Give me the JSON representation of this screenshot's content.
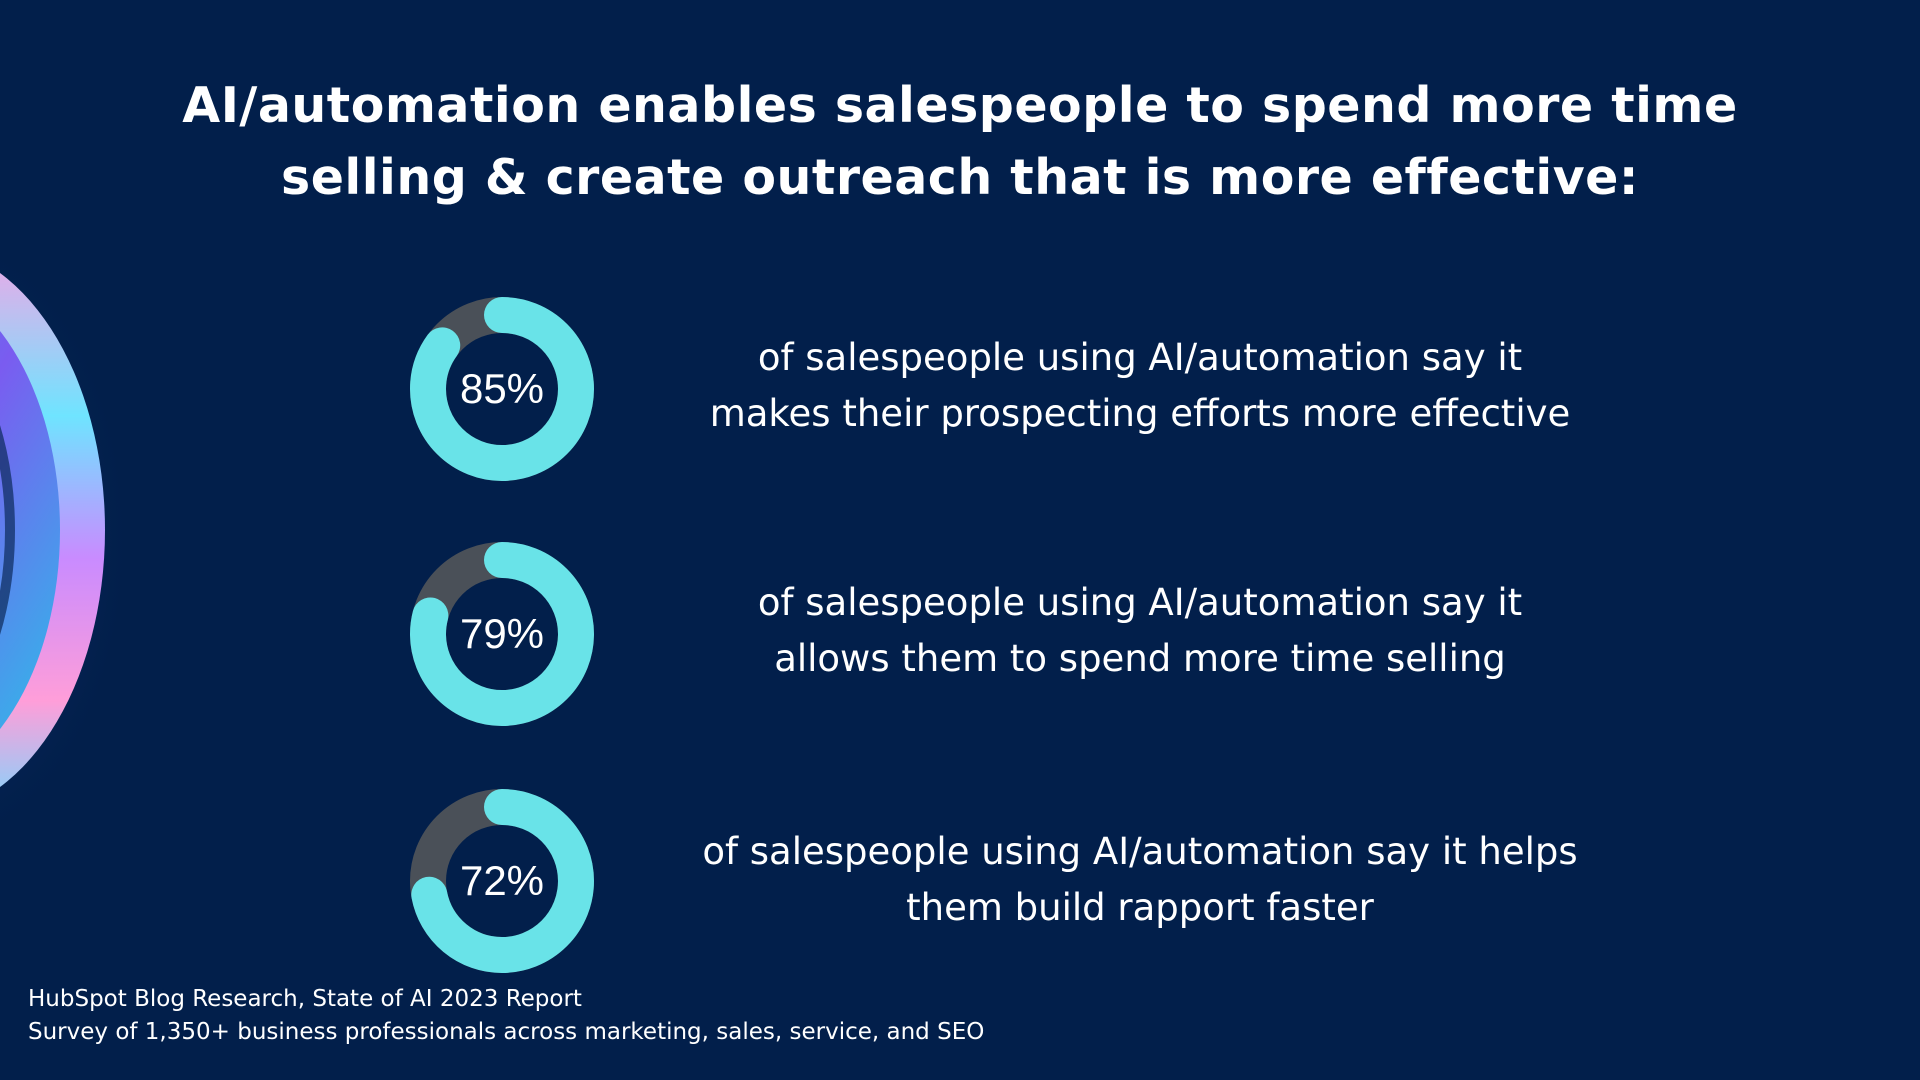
{
  "colors": {
    "background": "#021f4b",
    "ring_fill": "#69e3e8",
    "ring_track": "#4a5058",
    "text": "#ffffff"
  },
  "title": {
    "line1": "AI/automation enables salespeople to spend more time",
    "line2": "selling & create outreach that is more effective:"
  },
  "chart_data": {
    "type": "donut",
    "title": "AI/automation enables salespeople to spend more time selling & create outreach that is more effective:",
    "max": 100,
    "items": [
      {
        "label": "85%",
        "value": 85,
        "line1": "of salespeople using AI/automation say it",
        "line2": "makes their prospecting efforts more effective"
      },
      {
        "label": "79%",
        "value": 79,
        "line1": "of salespeople using AI/automation say it",
        "line2": "allows them to spend more time selling"
      },
      {
        "label": "72%",
        "value": 72,
        "line1": "of salespeople using AI/automation say it helps",
        "line2": "them build rapport faster"
      }
    ]
  },
  "source": {
    "line1": "HubSpot Blog Research, State of AI 2023 Report",
    "line2": "Survey of 1,350+ business professionals across marketing, sales, service, and SEO"
  }
}
